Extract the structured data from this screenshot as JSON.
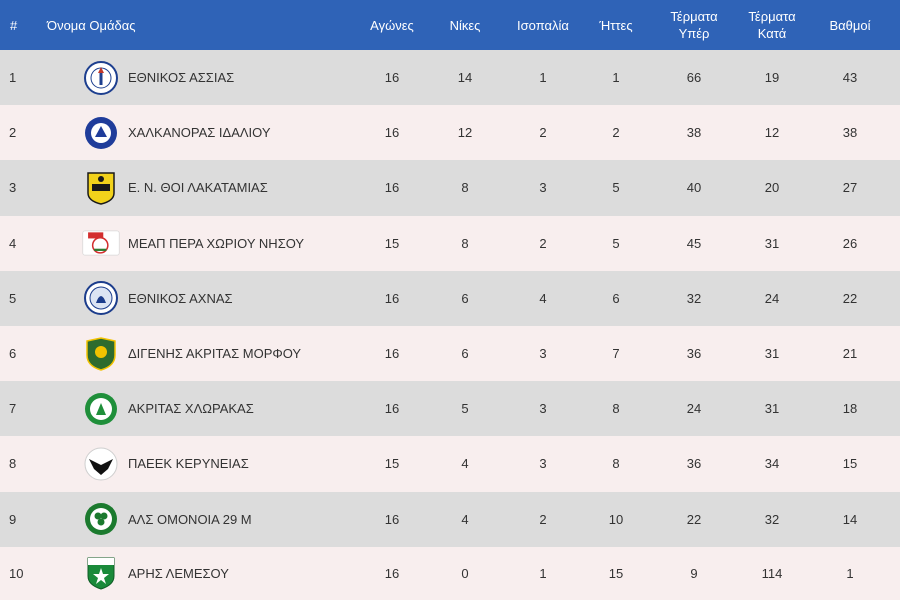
{
  "table": {
    "headers": {
      "rank": "#",
      "team": "Όνομα Ομάδας",
      "played": "Αγώνες",
      "wins": "Νίκες",
      "draws": "Ισοπαλία",
      "losses": "Ήττες",
      "goals_for_1": "Τέρματα",
      "goals_for_2": "Υπέρ",
      "goals_against_1": "Τέρματα",
      "goals_against_2": "Κατά",
      "points": "Βαθμοί"
    },
    "rows": [
      {
        "rank": "1",
        "team": "ΕΘΝΙΚΟΣ ΑΣΣΙΑΣ",
        "played": "16",
        "wins": "14",
        "draws": "1",
        "losses": "1",
        "gf": "66",
        "ga": "19",
        "pts": "43"
      },
      {
        "rank": "2",
        "team": "ΧΑΛΚΑΝΟΡΑΣ ΙΔΑΛΙΟΥ",
        "played": "16",
        "wins": "12",
        "draws": "2",
        "losses": "2",
        "gf": "38",
        "ga": "12",
        "pts": "38"
      },
      {
        "rank": "3",
        "team": "Ε. Ν. ΘΟΙ ΛΑΚΑΤΑΜΙΑΣ",
        "played": "16",
        "wins": "8",
        "draws": "3",
        "losses": "5",
        "gf": "40",
        "ga": "20",
        "pts": "27"
      },
      {
        "rank": "4",
        "team": "ΜΕΑΠ ΠΕΡΑ ΧΩΡΙΟΥ ΝΗΣΟΥ",
        "played": "15",
        "wins": "8",
        "draws": "2",
        "losses": "5",
        "gf": "45",
        "ga": "31",
        "pts": "26"
      },
      {
        "rank": "5",
        "team": "ΕΘΝΙΚΟΣ ΑΧΝΑΣ",
        "played": "16",
        "wins": "6",
        "draws": "4",
        "losses": "6",
        "gf": "32",
        "ga": "24",
        "pts": "22"
      },
      {
        "rank": "6",
        "team": "ΔΙΓΕΝΗΣ ΑΚΡΙΤΑΣ ΜΟΡΦΟΥ",
        "played": "16",
        "wins": "6",
        "draws": "3",
        "losses": "7",
        "gf": "36",
        "ga": "31",
        "pts": "21"
      },
      {
        "rank": "7",
        "team": "ΑΚΡΙΤΑΣ ΧΛΩΡΑΚΑΣ",
        "played": "16",
        "wins": "5",
        "draws": "3",
        "losses": "8",
        "gf": "24",
        "ga": "31",
        "pts": "18"
      },
      {
        "rank": "8",
        "team": "ΠΑΕΕΚ ΚΕΡΥΝΕΙΑΣ",
        "played": "15",
        "wins": "4",
        "draws": "3",
        "losses": "8",
        "gf": "36",
        "ga": "34",
        "pts": "15"
      },
      {
        "rank": "9",
        "team": "ΑΛΣ ΟΜΟΝΟΙΑ 29 Μ",
        "played": "16",
        "wins": "4",
        "draws": "2",
        "losses": "10",
        "gf": "22",
        "ga": "32",
        "pts": "14"
      },
      {
        "rank": "10",
        "team": "ΑΡΗΣ ΛΕΜΕΣΟΥ",
        "played": "16",
        "wins": "0",
        "draws": "1",
        "losses": "15",
        "gf": "9",
        "ga": "114",
        "pts": "1"
      }
    ]
  },
  "logos": [
    {
      "icon": "ethnikos-assias-crest-icon",
      "colors": [
        "#1d3f8f",
        "#c0392b"
      ]
    },
    {
      "icon": "chalkanoras-idaliou-crest-icon",
      "colors": [
        "#1f3c9a",
        "#ffffff"
      ]
    },
    {
      "icon": "thoi-lakatamias-crest-icon",
      "colors": [
        "#f2d21b",
        "#1a1a1a"
      ]
    },
    {
      "icon": "meap-pera-chorio-crest-icon",
      "colors": [
        "#d32f2f",
        "#2e7d32"
      ]
    },
    {
      "icon": "ethnikos-achnas-crest-icon",
      "colors": [
        "#1c3d8c",
        "#ffffff"
      ]
    },
    {
      "icon": "digenis-morfou-crest-icon",
      "colors": [
        "#2e6b2e",
        "#f2c200"
      ]
    },
    {
      "icon": "akritas-chloraka-crest-icon",
      "colors": [
        "#1f8f3a",
        "#ffffff"
      ]
    },
    {
      "icon": "paeek-keryneias-crest-icon",
      "colors": [
        "#111111",
        "#ffffff"
      ]
    },
    {
      "icon": "omonoia-29m-crest-icon",
      "colors": [
        "#1b7a2e",
        "#ffffff"
      ]
    },
    {
      "icon": "aris-lemesou-crest-icon",
      "colors": [
        "#1a8a3a",
        "#ffffff"
      ]
    }
  ],
  "theme": {
    "header_bg": "#2f63b7",
    "row_odd_bg": "#dcdcdc",
    "row_even_bg": "#f8eeee"
  }
}
